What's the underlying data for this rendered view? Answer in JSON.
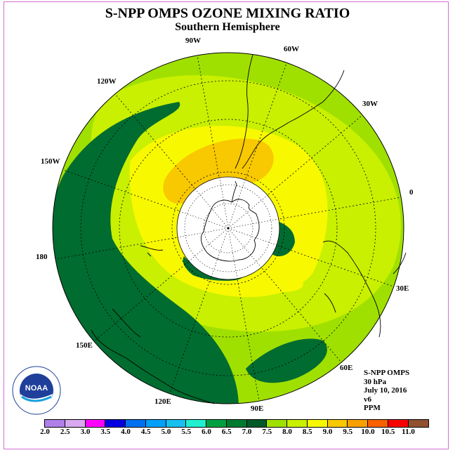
{
  "title": "S-NPP OMPS OZONE MIXING RATIO",
  "subtitle": "Southern Hemisphere",
  "longitude_labels": {
    "w90": "90W",
    "w60": "60W",
    "w30": "30W",
    "e0": "0",
    "e30": "30E",
    "e60": "60E",
    "e90": "90E",
    "e120": "120E",
    "e150": "150E",
    "e180": "180",
    "w150": "150W",
    "w120": "120W"
  },
  "info": {
    "instrument": "S-NPP OMPS",
    "level": "30 hPa",
    "date": "July 10, 2016",
    "version": "v6",
    "units": "PPM"
  },
  "logo_text": "NOAA",
  "colorbar": {
    "ticks": [
      "2.0",
      "2.5",
      "3.0",
      "3.5",
      "4.0",
      "4.5",
      "5.0",
      "5.5",
      "6.0",
      "6.5",
      "7.0",
      "7.5",
      "8.0",
      "8.5",
      "9.0",
      "9.5",
      "10.0",
      "10.5",
      "11.0"
    ],
    "colors": [
      "#b080e8",
      "#d8a8f0",
      "#ff00ff",
      "#0000e0",
      "#0070f0",
      "#00a0f8",
      "#18c0f0",
      "#20f0d0",
      "#00a040",
      "#007a30",
      "#005a28",
      "#a0e000",
      "#c8f000",
      "#f8f800",
      "#f8c800",
      "#f8a000",
      "#f86000",
      "#f80000",
      "#905030"
    ]
  },
  "chart_data": {
    "type": "heatmap",
    "title": "S-NPP OMPS OZONE MIXING RATIO",
    "subtitle": "Southern Hemisphere",
    "projection": "south polar stereographic",
    "variable": "ozone mixing ratio",
    "pressure_level": "30 hPa",
    "date": "July 10, 2016",
    "units": "PPM",
    "value_range": [
      2.0,
      11.0
    ],
    "levels": [
      2.0,
      2.5,
      3.0,
      3.5,
      4.0,
      4.5,
      5.0,
      5.5,
      6.0,
      6.5,
      7.0,
      7.5,
      8.0,
      8.5,
      9.0,
      9.5,
      10.0,
      10.5,
      11.0
    ],
    "regions": [
      {
        "area": "Pacific band 120W-180-120E",
        "range": "6.5-7.0"
      },
      {
        "area": "mid-latitudes",
        "range": "7.5-8.0"
      },
      {
        "area": "ring around polar night",
        "range": "8.0-8.5"
      },
      {
        "area": "south of South America 60W-90W",
        "range": "8.5-9.0"
      },
      {
        "area": "southern Indian Ocean 90E",
        "range": "6.5-7.0"
      },
      {
        "area": "polar night region",
        "range": "no data"
      }
    ]
  }
}
